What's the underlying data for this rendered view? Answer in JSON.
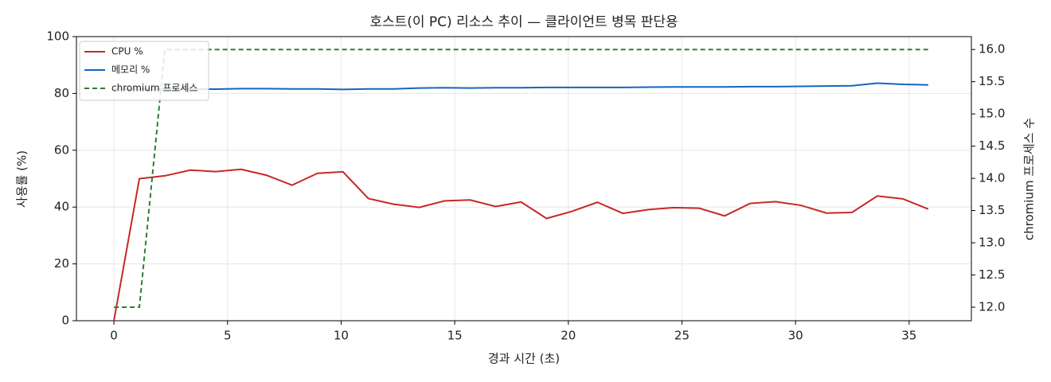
{
  "chart_data": {
    "type": "line",
    "title": "호스트(이 PC) 리소스 추이 — 클라이언트 병목 판단용",
    "xlabel": "경과 시간 (초)",
    "ylabel": "사용률 (%)",
    "y2label": "chromium 프로세스 수",
    "x": [
      0,
      1.12,
      2.24,
      3.36,
      4.48,
      5.6,
      6.72,
      7.84,
      8.96,
      10.08,
      11.2,
      12.32,
      13.44,
      14.56,
      15.68,
      16.8,
      17.92,
      19.04,
      20.16,
      21.28,
      22.4,
      23.52,
      24.64,
      25.76,
      26.88,
      28.0,
      29.12,
      30.24,
      31.36,
      32.48,
      33.6,
      34.72,
      35.84
    ],
    "series": [
      {
        "name": "CPU %",
        "color": "#c62828",
        "linestyle": "solid",
        "values": [
          0,
          50,
          51,
          53,
          52.5,
          53.3,
          51.2,
          47.7,
          51.9,
          52.4,
          43,
          41,
          39.9,
          42.2,
          42.5,
          40.2,
          41.8,
          36,
          38.5,
          41.7,
          37.8,
          39.1,
          39.8,
          39.6,
          36.9,
          41.3,
          41.9,
          40.6,
          37.9,
          38.1,
          43.9,
          42.9,
          39.3
        ]
      },
      {
        "name": "메모리 %",
        "color": "#1565c0",
        "linestyle": "solid",
        "values": [
          81.5,
          81.5,
          81.5,
          81.5,
          81.5,
          81.7,
          81.7,
          81.6,
          81.6,
          81.4,
          81.6,
          81.6,
          81.9,
          82.0,
          81.9,
          82.0,
          82.0,
          82.1,
          82.1,
          82.1,
          82.1,
          82.2,
          82.3,
          82.3,
          82.3,
          82.4,
          82.4,
          82.5,
          82.6,
          82.7,
          83.6,
          83.2,
          83.0
        ]
      },
      {
        "name": "chromium 프로세스",
        "color": "#2e7d32",
        "linestyle": "dashed",
        "axis": "y2",
        "values": [
          12,
          12,
          16,
          16,
          16,
          16,
          16,
          16,
          16,
          16,
          16,
          16,
          16,
          16,
          16,
          16,
          16,
          16,
          16,
          16,
          16,
          16,
          16,
          16,
          16,
          16,
          16,
          16,
          16,
          16,
          16,
          16,
          16
        ]
      }
    ],
    "xlim": [
      -1.65,
      37.74
    ],
    "xticks": [
      0,
      5,
      10,
      15,
      20,
      25,
      30,
      35
    ],
    "ylim": [
      0,
      100
    ],
    "yticks": [
      0,
      20,
      40,
      60,
      80,
      100
    ],
    "y2lim": [
      11.79,
      16.2
    ],
    "y2ticks": [
      {
        "value": 12,
        "label": "12.0"
      },
      12.5,
      {
        "value": 13,
        "label": "13.0"
      },
      13.5,
      {
        "value": 14,
        "label": "14.0"
      },
      14.5,
      {
        "value": 15,
        "label": "15.0"
      },
      15.5,
      {
        "value": 16,
        "label": "16.0"
      }
    ],
    "grid": true,
    "legend": "upper-left"
  }
}
